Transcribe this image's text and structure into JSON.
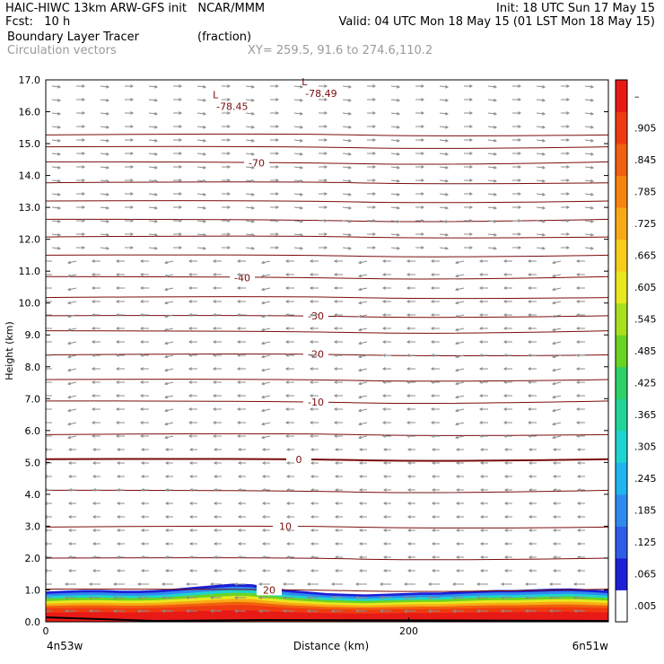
{
  "header": {
    "line1_left": "HAIC-HIWC 13km ARW-GFS init   NCAR/MMM",
    "line1_right": "Init: 18 UTC Sun 17 May 15",
    "fcst": "Fcst:   10 h",
    "valid": "Valid: 04 UTC Mon 18 May 15 (01 LST Mon 18 May 15)",
    "field": "Boundary Layer Tracer",
    "units": "(fraction)",
    "vectors": "Circulation vectors",
    "xy": "XY= 259.5, 91.6 to 274.6,110.2"
  },
  "chart_data": {
    "type": "cross-section",
    "ylabel": "Height (km)",
    "xlabel": "Distance (km)",
    "ylim": [
      0,
      17
    ],
    "xlim": [
      0,
      310
    ],
    "yticks": [
      "0.0",
      "1.0",
      "2.0",
      "3.0",
      "4.0",
      "5.0",
      "6.0",
      "7.0",
      "8.0",
      "9.0",
      "10.0",
      "11.0",
      "12.0",
      "13.0",
      "14.0",
      "15.0",
      "16.0",
      "17.0"
    ],
    "xticks": [
      {
        "value": 0,
        "label": "0"
      },
      {
        "value": 200,
        "label": "200"
      }
    ],
    "x_endpoints": {
      "left": "4n53w",
      "right": "6n51w"
    },
    "colorbar": {
      "labels": [
        ".005",
        ".065",
        ".125",
        ".185",
        ".245",
        ".305",
        ".365",
        ".425",
        ".485",
        ".545",
        ".605",
        ".665",
        ".725",
        ".785",
        ".845",
        ".905",
        "–"
      ],
      "colors": [
        "#ffffff",
        "#1d1fd6",
        "#2e5ee8",
        "#2f8af0",
        "#20b4f0",
        "#1ed4d0",
        "#20d49a",
        "#2ed068",
        "#6ad424",
        "#a8e01e",
        "#e8e81e",
        "#f8cc1a",
        "#f8aa14",
        "#f88410",
        "#f0600e",
        "#f03a10",
        "#e81a16"
      ]
    },
    "isotherms": [
      {
        "label": "20",
        "y": 1.0
      },
      {
        "label": "10",
        "y": 3.0
      },
      {
        "label": "0",
        "y": 5.1
      },
      {
        "label": "-10",
        "y": 6.9
      },
      {
        "label": "-20",
        "y": 8.4
      },
      {
        "label": "-30",
        "y": 9.6
      },
      {
        "label": "-40",
        "y": 10.8
      },
      {
        "label": "-70",
        "y": 14.4
      },
      {
        "label": "-78.45",
        "y": 16.2
      },
      {
        "label": "-78.49",
        "y": 16.5
      }
    ],
    "lows": [
      {
        "label": "L",
        "value": "-78.45",
        "x": 93,
        "y": 16.2
      },
      {
        "label": "L",
        "value": "-78.49",
        "x": 142,
        "y": 16.6
      }
    ],
    "tracer_top_km": [
      0.95,
      0.98,
      1.0,
      1.0,
      0.98,
      0.98,
      1.0,
      1.05,
      1.1,
      1.15,
      1.2,
      1.18,
      1.08,
      1.0,
      0.95,
      0.9,
      0.88,
      0.86,
      0.88,
      0.9,
      0.92,
      0.92,
      0.95,
      0.98,
      1.0,
      1.0,
      1.02,
      1.04,
      1.05,
      1.02,
      0.98
    ],
    "grid": false,
    "legend": "right"
  }
}
